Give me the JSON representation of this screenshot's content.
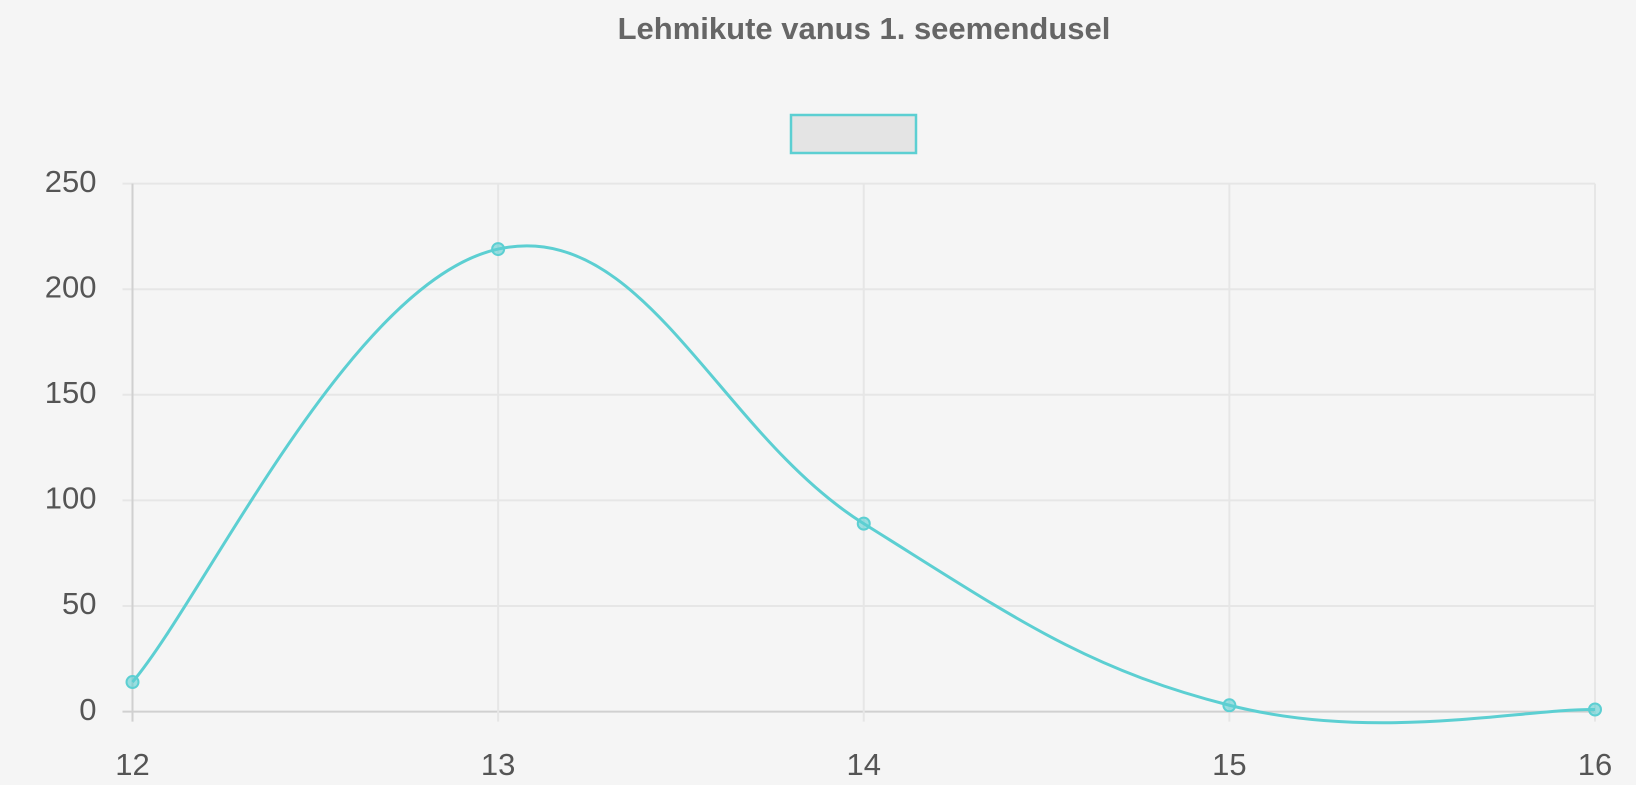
{
  "chart_data": {
    "type": "line",
    "title": "Lehmikute vanus 1. seemendusel",
    "x": [
      12,
      13,
      14,
      15,
      16
    ],
    "series": [
      {
        "color": "#5ccfd2",
        "values": [
          14,
          219,
          89,
          3,
          1
        ]
      }
    ],
    "xlim": [
      12,
      16
    ],
    "xticks": [
      12,
      13,
      14,
      15,
      16
    ],
    "ylim": [
      0,
      250
    ],
    "yticks": [
      0,
      50,
      100,
      150,
      200,
      250
    ],
    "grid": true
  }
}
